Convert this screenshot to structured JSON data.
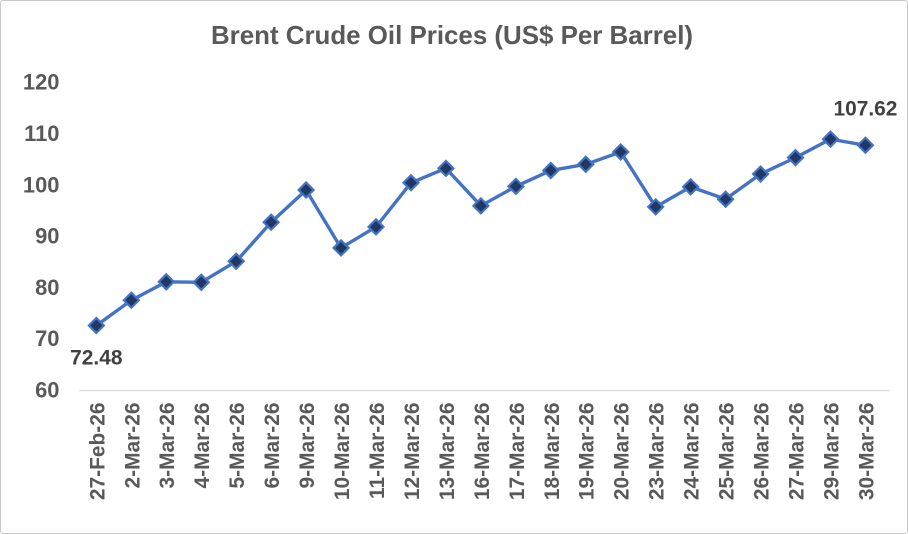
{
  "chart_data": {
    "type": "line",
    "title": "Brent Crude Oil Prices (US$ Per Barrel)",
    "categories": [
      "27-Feb-26",
      "2-Mar-26",
      "3-Mar-26",
      "4-Mar-26",
      "5-Mar-26",
      "6-Mar-26",
      "9-Mar-26",
      "10-Mar-26",
      "11-Mar-26",
      "12-Mar-26",
      "13-Mar-26",
      "16-Mar-26",
      "17-Mar-26",
      "18-Mar-26",
      "19-Mar-26",
      "20-Mar-26",
      "23-Mar-26",
      "24-Mar-26",
      "25-Mar-26",
      "26-Mar-26",
      "27-Mar-26",
      "29-Mar-26",
      "30-Mar-26"
    ],
    "series": [
      {
        "name": "Brent Crude Oil Price (US$ Per Barrel)",
        "values": [
          72.48,
          77.4,
          81.0,
          80.9,
          85.0,
          92.6,
          98.9,
          87.6,
          91.7,
          100.3,
          103.1,
          95.8,
          99.6,
          102.7,
          103.9,
          106.3,
          95.6,
          99.5,
          97.1,
          102.0,
          105.2,
          108.8,
          107.62
        ]
      }
    ],
    "xlabel": "",
    "ylabel": "",
    "ylim": [
      60,
      120
    ],
    "yticks": [
      120,
      110,
      100,
      90,
      80,
      70,
      60
    ],
    "grid": false,
    "legend": "none",
    "marker": "diamond",
    "point_labels": [
      {
        "index": 0,
        "text": "72.48",
        "position": "below"
      },
      {
        "index": 22,
        "text": "107.62",
        "position": "above"
      }
    ],
    "colors": {
      "line": "#4472C4",
      "marker_fill": "#1F3864",
      "title_text": "#595959",
      "axis_text": "#595959",
      "data_label_text": "#404040",
      "axis_line": "#D9D9D9",
      "border": "#C9C9C9",
      "background": "#FFFFFF"
    }
  }
}
